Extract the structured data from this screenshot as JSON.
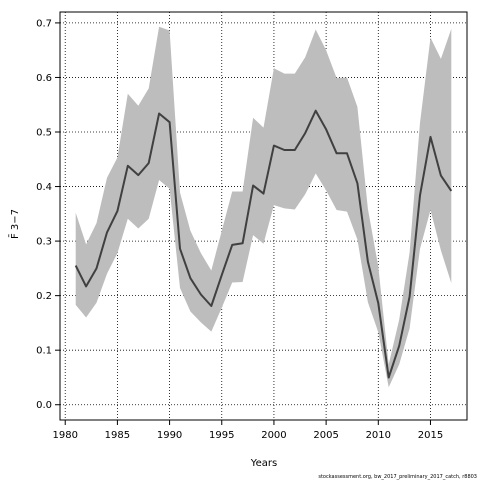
{
  "chart_data": {
    "type": "line",
    "xlabel": "Years",
    "ylabel": "F̄ 3−7",
    "xlim": [
      1979.5,
      2018.5
    ],
    "ylim": [
      -0.028,
      0.72
    ],
    "xticks": [
      1980,
      1985,
      1990,
      1995,
      2000,
      2005,
      2010,
      2015
    ],
    "yticks": [
      0.0,
      0.1,
      0.2,
      0.3,
      0.4,
      0.5,
      0.6,
      0.7
    ],
    "ytick_labels": [
      "0.0",
      "0.1",
      "0.2",
      "0.3",
      "0.4",
      "0.5",
      "0.6",
      "0.7"
    ],
    "grid": true,
    "colors": {
      "band": "#bdbdbd",
      "line": "#404040"
    },
    "x": [
      1981,
      1982,
      1983,
      1984,
      1985,
      1986,
      1987,
      1988,
      1989,
      1990,
      1991,
      1992,
      1993,
      1994,
      1995,
      1996,
      1997,
      1998,
      1999,
      2000,
      2001,
      2002,
      2003,
      2004,
      2005,
      2006,
      2007,
      2008,
      2009,
      2010,
      2011,
      2012,
      2013,
      2014,
      2015,
      2016,
      2017
    ],
    "series": [
      {
        "role": "estimate",
        "values": [
          0.255,
          0.217,
          0.25,
          0.316,
          0.355,
          0.438,
          0.421,
          0.443,
          0.534,
          0.518,
          0.286,
          0.232,
          0.202,
          0.181,
          0.238,
          0.293,
          0.296,
          0.402,
          0.387,
          0.475,
          0.467,
          0.467,
          0.498,
          0.539,
          0.505,
          0.461,
          0.461,
          0.406,
          0.262,
          0.186,
          0.05,
          0.108,
          0.198,
          0.384,
          0.491,
          0.42,
          0.392
        ]
      },
      {
        "role": "upper",
        "values": [
          0.352,
          0.294,
          0.333,
          0.416,
          0.453,
          0.57,
          0.548,
          0.58,
          0.693,
          0.686,
          0.389,
          0.319,
          0.278,
          0.246,
          0.319,
          0.391,
          0.391,
          0.526,
          0.508,
          0.617,
          0.607,
          0.607,
          0.637,
          0.688,
          0.65,
          0.599,
          0.6,
          0.546,
          0.359,
          0.253,
          0.074,
          0.156,
          0.279,
          0.517,
          0.673,
          0.634,
          0.689
        ]
      },
      {
        "role": "lower",
        "values": [
          0.183,
          0.16,
          0.187,
          0.24,
          0.278,
          0.341,
          0.323,
          0.341,
          0.412,
          0.396,
          0.214,
          0.171,
          0.151,
          0.134,
          0.178,
          0.224,
          0.225,
          0.311,
          0.295,
          0.366,
          0.36,
          0.358,
          0.386,
          0.424,
          0.393,
          0.357,
          0.354,
          0.303,
          0.188,
          0.133,
          0.032,
          0.074,
          0.14,
          0.286,
          0.357,
          0.283,
          0.223
        ]
      }
    ]
  },
  "footnote": "stockassessment.org, bw_2017_preliminary_2017_catch, r8803"
}
